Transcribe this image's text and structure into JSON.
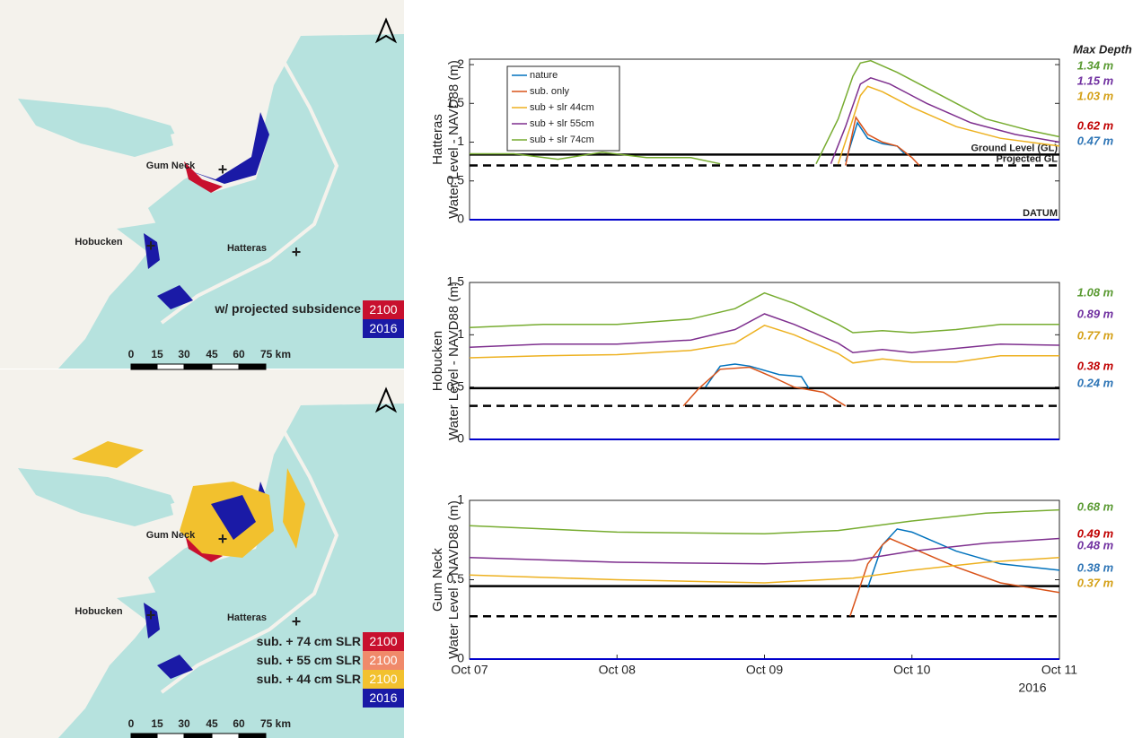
{
  "chart_data": [
    {
      "type": "line",
      "ylabel": [
        "Hatteras",
        "Water Level - NAVD88 (m)"
      ],
      "xlim": [
        0,
        4
      ],
      "ylim": [
        0,
        2.07
      ],
      "yticks": [
        0,
        0.5,
        1,
        1.5,
        2
      ],
      "legend": true,
      "series": [
        {
          "name": "nature",
          "color": "#0072BD",
          "x": [
            2.55,
            2.63,
            2.7,
            2.8,
            2.9,
            2.95
          ],
          "values": [
            0.75,
            1.25,
            1.05,
            0.98,
            0.95,
            0.85
          ]
        },
        {
          "name": "sub. only",
          "color": "#D95319",
          "x": [
            2.55,
            2.62,
            2.7,
            2.8,
            2.9,
            3.0,
            3.05
          ],
          "values": [
            0.7,
            1.32,
            1.1,
            1.0,
            0.95,
            0.8,
            0.7
          ]
        },
        {
          "name": "sub + slr 44cm",
          "color": "#EDB120",
          "x": [
            2.5,
            2.6,
            2.65,
            2.7,
            2.8,
            3.0,
            3.3,
            3.6,
            4.0
          ],
          "values": [
            0.72,
            1.3,
            1.6,
            1.72,
            1.65,
            1.45,
            1.2,
            1.05,
            0.95
          ]
        },
        {
          "name": "sub + slr 55cm",
          "color": "#7E2F8E",
          "x": [
            2.45,
            2.55,
            2.65,
            2.72,
            2.85,
            3.1,
            3.4,
            3.7,
            4.0
          ],
          "values": [
            0.72,
            1.2,
            1.75,
            1.83,
            1.75,
            1.5,
            1.25,
            1.1,
            1.0
          ]
        },
        {
          "name": "sub + slr 74cm",
          "color": "#77AC30",
          "x": [
            0,
            0.3,
            0.6,
            0.9,
            1.2,
            1.5,
            1.7,
            2.0,
            2.35,
            2.5,
            2.6,
            2.65,
            2.72,
            2.9,
            3.2,
            3.5,
            3.8,
            4.0
          ],
          "values": [
            0.85,
            0.85,
            0.78,
            0.87,
            0.8,
            0.8,
            0.72,
            null,
            0.72,
            1.3,
            1.85,
            2.02,
            2.05,
            1.9,
            1.6,
            1.3,
            1.15,
            1.07
          ]
        }
      ],
      "reference_lines": [
        {
          "label": "Ground Level (GL)",
          "value": 0.84,
          "style": "solid",
          "color": "#000000"
        },
        {
          "label": "Projected GL",
          "value": 0.7,
          "style": "dashed",
          "color": "#000000"
        },
        {
          "label": "DATUM",
          "value": 0,
          "style": "solid",
          "color": "#0000cc"
        }
      ],
      "depth_title": "Max Depth",
      "depth_labels": [
        {
          "text": "1.34 m",
          "color": "#5a9a32"
        },
        {
          "text": "1.15 m",
          "color": "#7030a0"
        },
        {
          "text": "1.03 m",
          "color": "#d4a017"
        },
        {
          "text": "0.62 m",
          "color": "#c00000"
        },
        {
          "text": "0.47 m",
          "color": "#2e75b6"
        }
      ]
    },
    {
      "type": "line",
      "ylabel": [
        "Hobucken",
        "Water Level - NAVD88 (m)"
      ],
      "xlim": [
        0,
        4
      ],
      "ylim": [
        0,
        1.5
      ],
      "yticks": [
        0,
        0.5,
        1,
        1.5
      ],
      "series": [
        {
          "name": "nature",
          "color": "#0072BD",
          "x": [
            1.6,
            1.7,
            1.8,
            1.9,
            2.1,
            2.25,
            2.3
          ],
          "values": [
            0.5,
            0.7,
            0.72,
            0.7,
            0.62,
            0.6,
            0.49
          ]
        },
        {
          "name": "sub. only",
          "color": "#D95319",
          "x": [
            1.45,
            1.55,
            1.7,
            1.9,
            2.05,
            2.2,
            2.4,
            2.55
          ],
          "values": [
            0.32,
            0.48,
            0.67,
            0.69,
            0.6,
            0.5,
            0.45,
            0.32
          ]
        },
        {
          "name": "sub + slr 44cm",
          "color": "#EDB120",
          "x": [
            0,
            0.5,
            1,
            1.5,
            1.8,
            2,
            2.2,
            2.5,
            2.6,
            2.8,
            3,
            3.3,
            3.6,
            4
          ],
          "values": [
            0.78,
            0.8,
            0.81,
            0.85,
            0.92,
            1.09,
            1.0,
            0.82,
            0.73,
            0.77,
            0.74,
            0.74,
            0.8,
            0.8
          ]
        },
        {
          "name": "sub + slr 55cm",
          "color": "#7E2F8E",
          "x": [
            0,
            0.5,
            1,
            1.5,
            1.8,
            2,
            2.2,
            2.5,
            2.6,
            2.8,
            3,
            3.3,
            3.6,
            4
          ],
          "values": [
            0.88,
            0.91,
            0.91,
            0.95,
            1.05,
            1.2,
            1.1,
            0.92,
            0.83,
            0.86,
            0.83,
            0.87,
            0.91,
            0.9
          ]
        },
        {
          "name": "sub + slr 74cm",
          "color": "#77AC30",
          "x": [
            0,
            0.5,
            1,
            1.5,
            1.8,
            2,
            2.2,
            2.5,
            2.6,
            2.8,
            3,
            3.3,
            3.6,
            4
          ],
          "values": [
            1.07,
            1.1,
            1.1,
            1.15,
            1.25,
            1.4,
            1.3,
            1.1,
            1.02,
            1.04,
            1.02,
            1.05,
            1.1,
            1.1
          ]
        }
      ],
      "reference_lines": [
        {
          "value": 0.49,
          "style": "solid",
          "color": "#000000"
        },
        {
          "value": 0.32,
          "style": "dashed",
          "color": "#000000"
        },
        {
          "value": 0,
          "style": "solid",
          "color": "#0000cc"
        }
      ],
      "depth_labels": [
        {
          "text": "1.08 m",
          "color": "#5a9a32"
        },
        {
          "text": "0.89 m",
          "color": "#7030a0"
        },
        {
          "text": "0.77 m",
          "color": "#d4a017"
        },
        {
          "text": "0.38 m",
          "color": "#c00000"
        },
        {
          "text": "0.24 m",
          "color": "#2e75b6"
        }
      ]
    },
    {
      "type": "line",
      "ylabel": [
        "Gum Neck",
        "Water Level - NAVD88 (m)"
      ],
      "xlim": [
        0,
        4
      ],
      "ylim": [
        0,
        1
      ],
      "yticks": [
        0,
        0.5,
        1
      ],
      "xticks": [
        {
          "value": 0,
          "label": "Oct 07"
        },
        {
          "value": 1,
          "label": "Oct 08"
        },
        {
          "value": 2,
          "label": "Oct 09"
        },
        {
          "value": 3,
          "label": "Oct 10"
        },
        {
          "value": 4,
          "label": "Oct 11"
        }
      ],
      "x_year": "2016",
      "series": [
        {
          "name": "nature",
          "color": "#0072BD",
          "x": [
            2.7,
            2.8,
            2.9,
            3.0,
            3.3,
            3.6,
            4.0
          ],
          "values": [
            0.45,
            0.72,
            0.82,
            0.8,
            0.68,
            0.6,
            0.56
          ]
        },
        {
          "name": "sub. only",
          "color": "#D95319",
          "x": [
            2.58,
            2.7,
            2.8,
            2.85,
            3.0,
            3.3,
            3.6,
            4.0
          ],
          "values": [
            0.27,
            0.6,
            0.72,
            0.76,
            0.7,
            0.58,
            0.48,
            0.42
          ]
        },
        {
          "name": "sub + slr 44cm",
          "color": "#EDB120",
          "x": [
            0,
            1,
            2,
            2.6,
            3.0,
            3.5,
            4
          ],
          "values": [
            0.53,
            0.5,
            0.48,
            0.51,
            0.56,
            0.61,
            0.64
          ]
        },
        {
          "name": "sub + slr 55cm",
          "color": "#7E2F8E",
          "x": [
            0,
            1,
            2,
            2.6,
            3.0,
            3.5,
            4
          ],
          "values": [
            0.64,
            0.61,
            0.6,
            0.62,
            0.68,
            0.73,
            0.76
          ]
        },
        {
          "name": "sub + slr 74cm",
          "color": "#77AC30",
          "x": [
            0,
            1,
            2,
            2.5,
            3.0,
            3.5,
            4
          ],
          "values": [
            0.84,
            0.8,
            0.79,
            0.81,
            0.87,
            0.92,
            0.94
          ]
        }
      ],
      "reference_lines": [
        {
          "value": 0.46,
          "style": "solid",
          "color": "#000000"
        },
        {
          "value": 0.27,
          "style": "dashed",
          "color": "#000000"
        },
        {
          "value": 0,
          "style": "solid",
          "color": "#0000cc"
        }
      ],
      "depth_labels": [
        {
          "text": "0.68 m",
          "color": "#5a9a32"
        },
        {
          "text": "0.49 m",
          "color": "#c00000"
        },
        {
          "text": "0.48 m",
          "color": "#7030a0"
        },
        {
          "text": "0.38 m",
          "color": "#2e75b6"
        },
        {
          "text": "0.37 m",
          "color": "#d4a017"
        }
      ]
    }
  ],
  "maps": [
    {
      "places": [
        "Gum Neck",
        "Hobucken",
        "Hatteras"
      ],
      "title": "w/ projected subsidence",
      "legend": [
        {
          "label": "2100",
          "color": "#c8102e"
        },
        {
          "label": "2016",
          "color": "#1a1aa6"
        }
      ],
      "scale": [
        "0",
        "15",
        "30",
        "45",
        "60",
        "75 km"
      ]
    },
    {
      "places": [
        "Gum Neck",
        "Hobucken",
        "Hatteras"
      ],
      "legend": [
        {
          "name": "sub. + 74 cm SLR",
          "label": "2100",
          "color": "#c8102e"
        },
        {
          "name": "sub. + 55 cm SLR",
          "label": "2100",
          "color": "#f08a6a"
        },
        {
          "name": "sub. + 44 cm SLR",
          "label": "2100",
          "color": "#f2c12e"
        },
        {
          "label": "2016",
          "color": "#1a1aa6"
        }
      ],
      "scale": [
        "0",
        "15",
        "30",
        "45",
        "60",
        "75 km"
      ]
    }
  ]
}
